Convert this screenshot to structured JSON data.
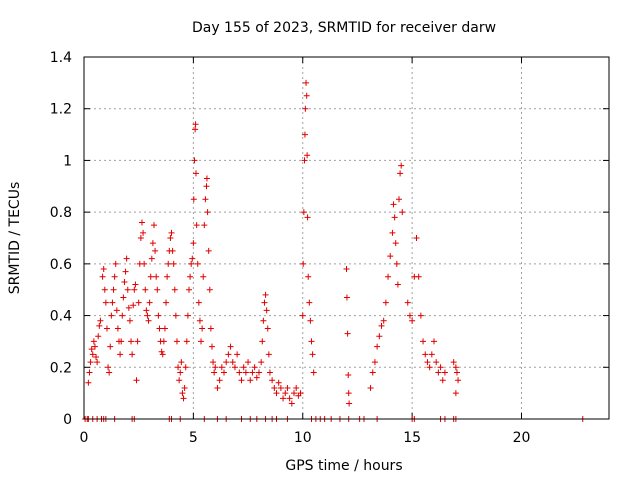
{
  "chart_data": {
    "type": "scatter",
    "title": "Day 155 of 2023, SRMTID for receiver darw",
    "xlabel": "GPS time / hours",
    "ylabel": "SRMTID / TECUs",
    "xlim": [
      0,
      24
    ],
    "ylim": [
      0,
      1.4
    ],
    "xticks": [
      0,
      5,
      10,
      15,
      20
    ],
    "xtick_labels": [
      "0",
      "5",
      "10",
      "15",
      "20"
    ],
    "yticks": [
      0,
      0.2,
      0.4,
      0.6,
      0.8,
      1.0,
      1.2,
      1.4
    ],
    "ytick_labels": [
      "0",
      "0.2",
      "0.4",
      "0.6",
      "0.8",
      "1",
      "1.2",
      "1.4"
    ],
    "grid": true,
    "marker": "+",
    "color": "#e00000",
    "series": [
      {
        "name": "SRMTID",
        "points": [
          [
            0.05,
            0
          ],
          [
            0.15,
            0
          ],
          [
            0.2,
            0
          ],
          [
            0.4,
            0
          ],
          [
            0.6,
            0
          ],
          [
            0.8,
            0
          ],
          [
            0.9,
            0
          ],
          [
            1.0,
            0
          ],
          [
            1.4,
            0
          ],
          [
            2.2,
            0
          ],
          [
            2.3,
            0
          ],
          [
            3.9,
            0
          ],
          [
            4.0,
            0
          ],
          [
            4.4,
            0
          ],
          [
            5.5,
            0
          ],
          [
            6.1,
            0
          ],
          [
            6.5,
            0
          ],
          [
            7.2,
            0
          ],
          [
            7.6,
            0
          ],
          [
            7.9,
            0
          ],
          [
            8.3,
            0
          ],
          [
            8.6,
            0
          ],
          [
            8.8,
            0
          ],
          [
            9.3,
            0
          ],
          [
            10.4,
            0
          ],
          [
            10.6,
            0
          ],
          [
            10.8,
            0
          ],
          [
            11.0,
            0
          ],
          [
            11.3,
            0
          ],
          [
            11.7,
            0
          ],
          [
            12.1,
            0
          ],
          [
            12.6,
            0
          ],
          [
            12.8,
            0
          ],
          [
            13.4,
            0
          ],
          [
            15.0,
            0
          ],
          [
            15.1,
            0
          ],
          [
            16.3,
            0
          ],
          [
            16.5,
            0
          ],
          [
            16.9,
            0
          ],
          [
            17.0,
            0
          ],
          [
            22.8,
            0
          ],
          [
            0.2,
            0.14
          ],
          [
            0.25,
            0.18
          ],
          [
            0.3,
            0.22
          ],
          [
            0.35,
            0.27
          ],
          [
            0.4,
            0.25
          ],
          [
            0.45,
            0.3
          ],
          [
            0.5,
            0.28
          ],
          [
            0.55,
            0.24
          ],
          [
            0.6,
            0.22
          ],
          [
            0.65,
            0.32
          ],
          [
            0.7,
            0.36
          ],
          [
            0.75,
            0.38
          ],
          [
            0.85,
            0.55
          ],
          [
            0.9,
            0.58
          ],
          [
            0.95,
            0.5
          ],
          [
            1.0,
            0.45
          ],
          [
            1.05,
            0.35
          ],
          [
            1.1,
            0.2
          ],
          [
            1.15,
            0.18
          ],
          [
            1.2,
            0.28
          ],
          [
            1.25,
            0.4
          ],
          [
            1.3,
            0.45
          ],
          [
            1.35,
            0.5
          ],
          [
            1.4,
            0.55
          ],
          [
            1.45,
            0.6
          ],
          [
            1.5,
            0.42
          ],
          [
            1.55,
            0.35
          ],
          [
            1.6,
            0.3
          ],
          [
            1.65,
            0.25
          ],
          [
            1.7,
            0.3
          ],
          [
            1.75,
            0.4
          ],
          [
            1.8,
            0.47
          ],
          [
            1.85,
            0.53
          ],
          [
            1.9,
            0.57
          ],
          [
            1.95,
            0.62
          ],
          [
            2.0,
            0.5
          ],
          [
            2.05,
            0.43
          ],
          [
            2.1,
            0.38
          ],
          [
            2.15,
            0.3
          ],
          [
            2.2,
            0.25
          ],
          [
            2.25,
            0.44
          ],
          [
            2.3,
            0.5
          ],
          [
            2.35,
            0.52
          ],
          [
            2.4,
            0.15
          ],
          [
            2.45,
            0.3
          ],
          [
            2.5,
            0.45
          ],
          [
            2.55,
            0.6
          ],
          [
            2.6,
            0.7
          ],
          [
            2.65,
            0.76
          ],
          [
            2.7,
            0.72
          ],
          [
            2.75,
            0.6
          ],
          [
            2.8,
            0.5
          ],
          [
            2.85,
            0.42
          ],
          [
            2.9,
            0.4
          ],
          [
            2.95,
            0.38
          ],
          [
            3.0,
            0.45
          ],
          [
            3.05,
            0.55
          ],
          [
            3.1,
            0.62
          ],
          [
            3.15,
            0.68
          ],
          [
            3.2,
            0.75
          ],
          [
            3.25,
            0.65
          ],
          [
            3.3,
            0.55
          ],
          [
            3.35,
            0.5
          ],
          [
            3.4,
            0.4
          ],
          [
            3.45,
            0.35
          ],
          [
            3.5,
            0.3
          ],
          [
            3.55,
            0.26
          ],
          [
            3.6,
            0.25
          ],
          [
            3.65,
            0.3
          ],
          [
            3.7,
            0.35
          ],
          [
            3.75,
            0.45
          ],
          [
            3.8,
            0.55
          ],
          [
            3.85,
            0.6
          ],
          [
            3.9,
            0.65
          ],
          [
            3.95,
            0.7
          ],
          [
            4.0,
            0.72
          ],
          [
            4.05,
            0.65
          ],
          [
            4.1,
            0.6
          ],
          [
            4.15,
            0.5
          ],
          [
            4.2,
            0.4
          ],
          [
            4.25,
            0.3
          ],
          [
            4.3,
            0.2
          ],
          [
            4.35,
            0.15
          ],
          [
            4.4,
            0.18
          ],
          [
            4.45,
            0.22
          ],
          [
            4.5,
            0.1
          ],
          [
            4.55,
            0.08
          ],
          [
            4.6,
            0.12
          ],
          [
            4.65,
            0.2
          ],
          [
            4.7,
            0.3
          ],
          [
            4.75,
            0.4
          ],
          [
            4.8,
            0.5
          ],
          [
            4.85,
            0.55
          ],
          [
            4.9,
            0.6
          ],
          [
            4.95,
            0.62
          ],
          [
            5.0,
            0.68
          ],
          [
            5.02,
            0.85
          ],
          [
            5.05,
            1.0
          ],
          [
            5.08,
            1.12
          ],
          [
            5.1,
            1.14
          ],
          [
            5.12,
            0.95
          ],
          [
            5.15,
            0.75
          ],
          [
            5.2,
            0.6
          ],
          [
            5.25,
            0.45
          ],
          [
            5.3,
            0.38
          ],
          [
            5.35,
            0.3
          ],
          [
            5.4,
            0.35
          ],
          [
            5.45,
            0.55
          ],
          [
            5.5,
            0.75
          ],
          [
            5.55,
            0.85
          ],
          [
            5.6,
            0.9
          ],
          [
            5.62,
            0.93
          ],
          [
            5.65,
            0.8
          ],
          [
            5.7,
            0.65
          ],
          [
            5.75,
            0.5
          ],
          [
            5.8,
            0.35
          ],
          [
            5.85,
            0.28
          ],
          [
            5.9,
            0.22
          ],
          [
            5.95,
            0.18
          ],
          [
            6.0,
            0.2
          ],
          [
            6.1,
            0.12
          ],
          [
            6.2,
            0.15
          ],
          [
            6.3,
            0.2
          ],
          [
            6.4,
            0.18
          ],
          [
            6.5,
            0.22
          ],
          [
            6.6,
            0.25
          ],
          [
            6.7,
            0.28
          ],
          [
            6.8,
            0.22
          ],
          [
            6.9,
            0.2
          ],
          [
            7.0,
            0.25
          ],
          [
            7.1,
            0.18
          ],
          [
            7.2,
            0.15
          ],
          [
            7.3,
            0.2
          ],
          [
            7.4,
            0.18
          ],
          [
            7.5,
            0.22
          ],
          [
            7.6,
            0.15
          ],
          [
            7.7,
            0.18
          ],
          [
            7.8,
            0.2
          ],
          [
            7.9,
            0.16
          ],
          [
            8.0,
            0.18
          ],
          [
            8.1,
            0.22
          ],
          [
            8.15,
            0.3
          ],
          [
            8.2,
            0.38
          ],
          [
            8.25,
            0.45
          ],
          [
            8.3,
            0.48
          ],
          [
            8.35,
            0.42
          ],
          [
            8.4,
            0.35
          ],
          [
            8.45,
            0.25
          ],
          [
            8.5,
            0.18
          ],
          [
            8.6,
            0.15
          ],
          [
            8.7,
            0.12
          ],
          [
            8.8,
            0.1
          ],
          [
            8.9,
            0.14
          ],
          [
            9.0,
            0.12
          ],
          [
            9.1,
            0.08
          ],
          [
            9.2,
            0.1
          ],
          [
            9.3,
            0.12
          ],
          [
            9.4,
            0.08
          ],
          [
            9.5,
            0.06
          ],
          [
            9.6,
            0.1
          ],
          [
            9.7,
            0.12
          ],
          [
            9.8,
            0.09
          ],
          [
            9.9,
            0.1
          ],
          [
            10.0,
            0.4
          ],
          [
            10.02,
            0.6
          ],
          [
            10.05,
            0.8
          ],
          [
            10.08,
            1.0
          ],
          [
            10.1,
            1.1
          ],
          [
            10.12,
            1.2
          ],
          [
            10.15,
            1.3
          ],
          [
            10.18,
            1.25
          ],
          [
            10.2,
            1.02
          ],
          [
            10.22,
            0.78
          ],
          [
            10.25,
            0.55
          ],
          [
            10.3,
            0.45
          ],
          [
            10.35,
            0.38
          ],
          [
            10.4,
            0.3
          ],
          [
            10.45,
            0.25
          ],
          [
            10.5,
            0.18
          ],
          [
            12.0,
            0.58
          ],
          [
            12.02,
            0.47
          ],
          [
            12.05,
            0.33
          ],
          [
            12.08,
            0.17
          ],
          [
            12.1,
            0.1
          ],
          [
            12.12,
            0.06
          ],
          [
            13.1,
            0.12
          ],
          [
            13.2,
            0.18
          ],
          [
            13.3,
            0.22
          ],
          [
            13.4,
            0.28
          ],
          [
            13.5,
            0.32
          ],
          [
            13.6,
            0.36
          ],
          [
            13.7,
            0.38
          ],
          [
            13.8,
            0.45
          ],
          [
            13.9,
            0.55
          ],
          [
            14.0,
            0.63
          ],
          [
            14.1,
            0.72
          ],
          [
            14.15,
            0.83
          ],
          [
            14.2,
            0.78
          ],
          [
            14.25,
            0.68
          ],
          [
            14.3,
            0.6
          ],
          [
            14.35,
            0.52
          ],
          [
            14.4,
            0.85
          ],
          [
            14.45,
            0.95
          ],
          [
            14.5,
            0.98
          ],
          [
            14.55,
            0.8
          ],
          [
            14.8,
            0.45
          ],
          [
            14.9,
            0.4
          ],
          [
            15.0,
            0.38
          ],
          [
            15.1,
            0.55
          ],
          [
            15.2,
            0.7
          ],
          [
            15.3,
            0.55
          ],
          [
            15.4,
            0.4
          ],
          [
            15.5,
            0.3
          ],
          [
            15.6,
            0.25
          ],
          [
            15.7,
            0.22
          ],
          [
            15.8,
            0.2
          ],
          [
            15.9,
            0.25
          ],
          [
            16.0,
            0.3
          ],
          [
            16.1,
            0.22
          ],
          [
            16.2,
            0.18
          ],
          [
            16.3,
            0.2
          ],
          [
            16.4,
            0.15
          ],
          [
            16.5,
            0.18
          ],
          [
            16.9,
            0.22
          ],
          [
            17.0,
            0.2
          ],
          [
            17.05,
            0.18
          ],
          [
            17.1,
            0.15
          ],
          [
            17.0,
            0.1
          ]
        ]
      }
    ]
  }
}
